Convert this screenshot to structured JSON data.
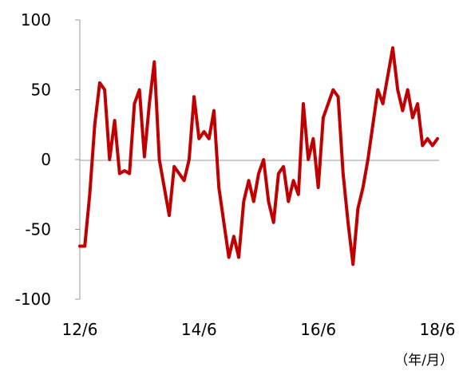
{
  "chart_data": {
    "type": "line",
    "title": "",
    "xlabel": "",
    "ylabel": "",
    "unit_label": "（年/月）",
    "ylim": [
      -100,
      100
    ],
    "yticks": [
      "100",
      "50",
      "0",
      "-50",
      "-100"
    ],
    "ytick_values": [
      100,
      50,
      0,
      -50,
      -100
    ],
    "xticks": [
      "12/6",
      "14/6",
      "16/6",
      "18/6"
    ],
    "xtick_positions": [
      "2012-06",
      "2014-06",
      "2016-06",
      "2018-06"
    ],
    "grid": false,
    "legend": "none",
    "series": [
      {
        "color": "#c00000",
        "x": [
          "2012-06",
          "2012-07",
          "2012-08",
          "2012-09",
          "2012-10",
          "2012-11",
          "2012-12",
          "2013-01",
          "2013-02",
          "2013-03",
          "2013-04",
          "2013-05",
          "2013-06",
          "2013-07",
          "2013-08",
          "2013-09",
          "2013-10",
          "2013-11",
          "2013-12",
          "2014-01",
          "2014-02",
          "2014-03",
          "2014-04",
          "2014-05",
          "2014-06",
          "2014-07",
          "2014-08",
          "2014-09",
          "2014-10",
          "2014-11",
          "2014-12",
          "2015-01",
          "2015-02",
          "2015-03",
          "2015-04",
          "2015-05",
          "2015-06",
          "2015-07",
          "2015-08",
          "2015-09",
          "2015-10",
          "2015-11",
          "2015-12",
          "2016-01",
          "2016-02",
          "2016-03",
          "2016-04",
          "2016-05",
          "2016-06",
          "2016-07",
          "2016-08",
          "2016-09",
          "2016-10",
          "2016-11",
          "2016-12",
          "2017-01",
          "2017-02",
          "2017-03",
          "2017-04",
          "2017-05",
          "2017-06",
          "2017-07",
          "2017-08",
          "2017-09",
          "2017-10",
          "2017-11",
          "2017-12",
          "2018-01",
          "2018-02",
          "2018-03",
          "2018-04",
          "2018-05",
          "2018-06"
        ],
        "values": [
          -62,
          -62,
          -25,
          25,
          55,
          50,
          0,
          28,
          -10,
          -8,
          -10,
          40,
          50,
          2,
          40,
          70,
          0,
          -20,
          -40,
          -5,
          -10,
          -15,
          0,
          45,
          15,
          20,
          15,
          35,
          -20,
          -45,
          -70,
          -55,
          -70,
          -30,
          -15,
          -30,
          -10,
          0,
          -30,
          -45,
          -10,
          -5,
          -30,
          -15,
          -25,
          40,
          0,
          15,
          -20,
          30,
          40,
          50,
          45,
          -10,
          -45,
          -75,
          -35,
          -20,
          0,
          25,
          50,
          40,
          60,
          80,
          50,
          35,
          50,
          30,
          40,
          10,
          15,
          10,
          15
        ]
      }
    ]
  }
}
